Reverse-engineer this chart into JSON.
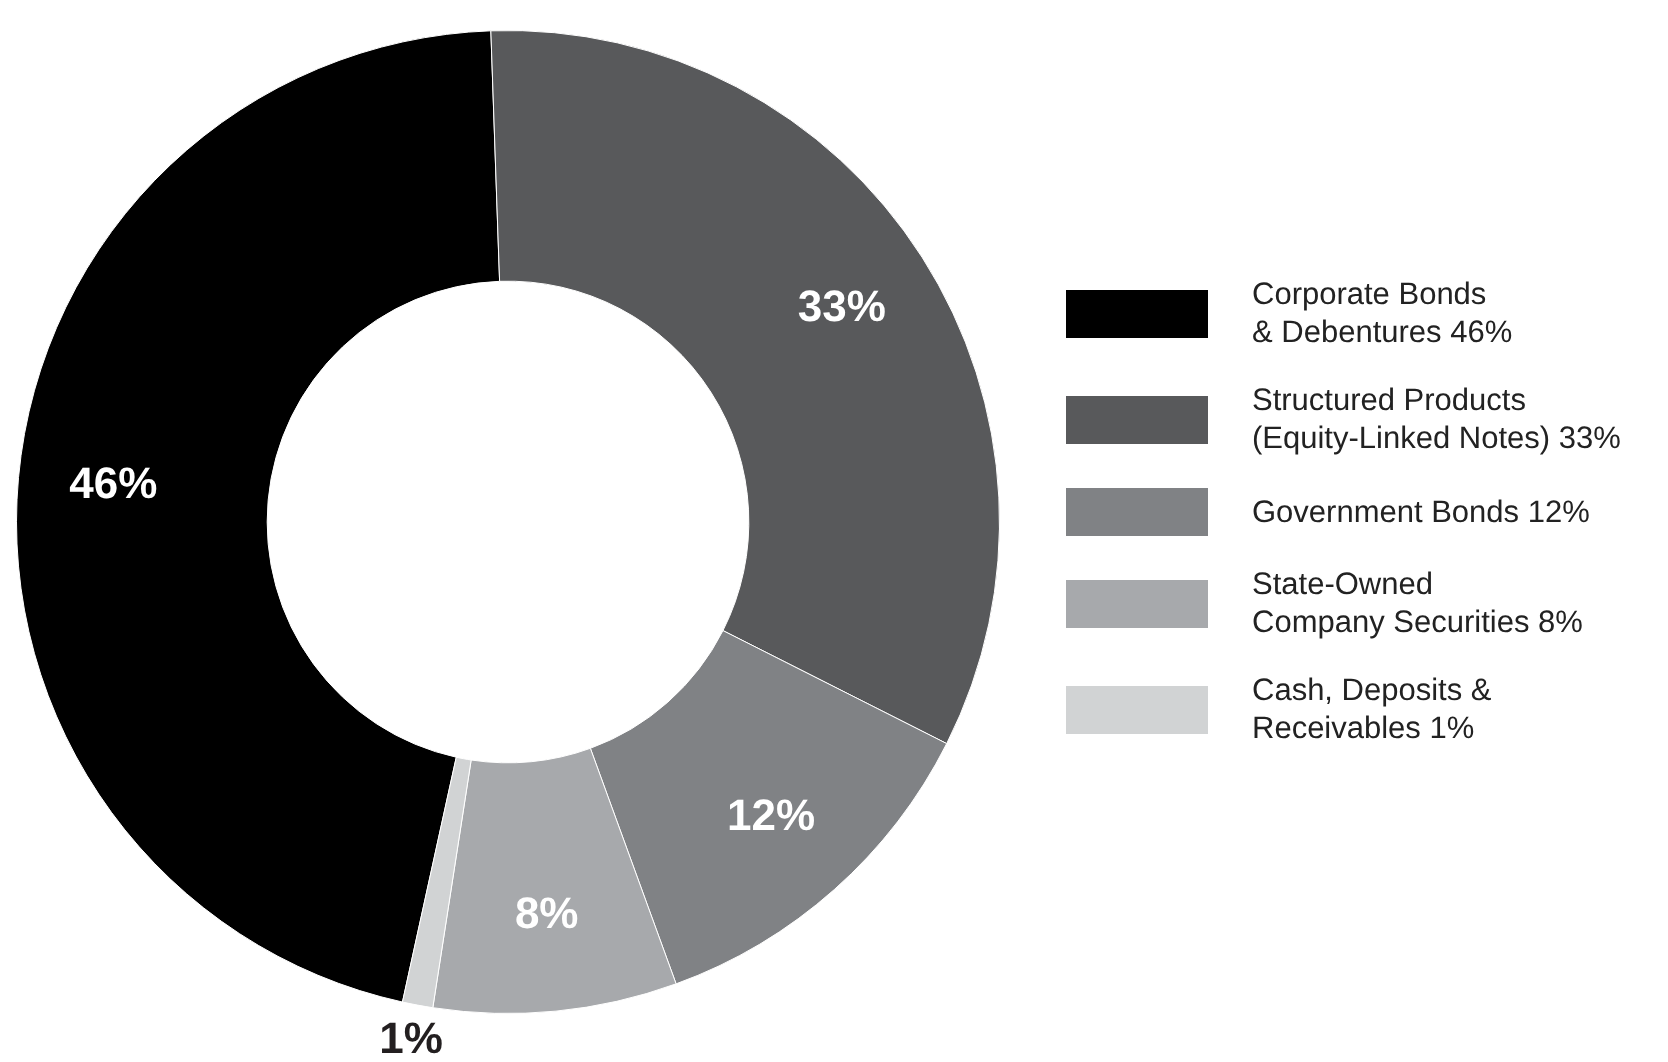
{
  "chart_data": {
    "type": "donut",
    "categories": [
      "Corporate Bonds\n& Debentures 46%",
      "Structured Products\n(Equity-Linked Notes) 33%",
      "Government Bonds 12%",
      "State-Owned\nCompany Securities 8%",
      "Cash, Deposits &\nReceivables 1%"
    ],
    "values": [
      46,
      33,
      12,
      8,
      1
    ],
    "colors": [
      "#000000",
      "#58595b",
      "#808285",
      "#a7a9ac",
      "#d1d3d4"
    ],
    "value_labels": [
      "46%",
      "33%",
      "12%",
      "8%",
      "1%"
    ],
    "legend": "right"
  }
}
